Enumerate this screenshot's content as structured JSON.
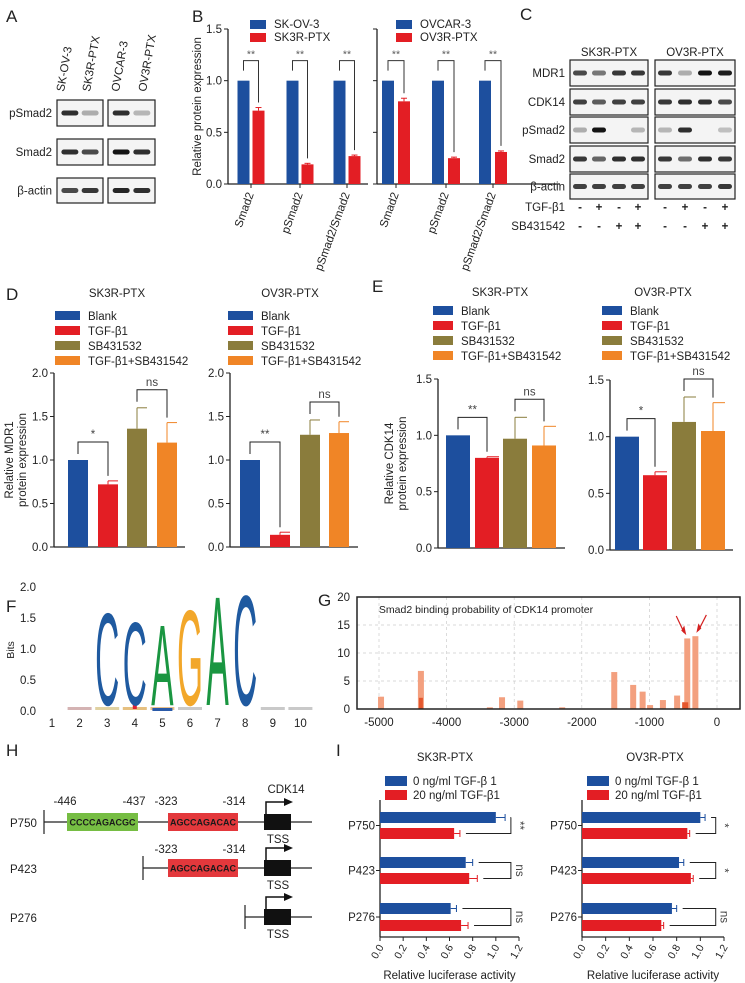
{
  "panel_labels": [
    "A",
    "B",
    "C",
    "D",
    "E",
    "F",
    "G",
    "H",
    "I"
  ],
  "colors": {
    "blue": "#1d4f9e",
    "red": "#e31e24",
    "olive": "#8a7c3c",
    "orange": "#f08526",
    "logo_c": "#1f5aa0",
    "logo_a": "#1a9641",
    "logo_g": "#f2a72a",
    "binding_bar": "#f3a07f",
    "binding_bar_dark": "#e4572e",
    "arrow": "#d42020",
    "site_green": "#76bd43",
    "site_red": "#e3383c"
  },
  "panel_a": {
    "columns": [
      "SK-OV-3",
      "SK3R-PTX",
      "OVCAR-3",
      "OV3R-PTX"
    ],
    "rows": [
      {
        "label": "pSmad2",
        "bands": [
          0.85,
          0.15,
          0.85,
          0.1
        ]
      },
      {
        "label": "Smad2",
        "bands": [
          0.85,
          0.7,
          1.0,
          0.85
        ]
      },
      {
        "label": "β-actin",
        "bands": [
          0.7,
          0.8,
          0.9,
          0.85
        ]
      }
    ]
  },
  "panel_c": {
    "groups": [
      "SK3R-PTX",
      "OV3R-PTX"
    ],
    "rows": [
      {
        "label": "MDR1",
        "bands": [
          0.7,
          0.45,
          0.8,
          0.8,
          0.8,
          0.15,
          1.0,
          0.95
        ]
      },
      {
        "label": "CDK14",
        "bands": [
          0.75,
          0.6,
          0.75,
          0.75,
          0.8,
          0.85,
          0.85,
          0.7
        ]
      },
      {
        "label": "pSmad2",
        "bands": [
          0.15,
          1.0,
          0.0,
          0.1,
          0.1,
          0.85,
          0.0,
          0.05
        ]
      },
      {
        "label": "Smad2",
        "bands": [
          0.8,
          0.55,
          0.85,
          0.85,
          0.8,
          0.5,
          0.85,
          0.8
        ]
      },
      {
        "label": "β-actin",
        "bands": [
          0.75,
          0.75,
          0.75,
          0.75,
          0.75,
          0.75,
          0.75,
          0.8
        ]
      }
    ],
    "treatments": [
      {
        "label": "TGF-β1",
        "signs": [
          "-",
          "+",
          "-",
          "+",
          "-",
          "+",
          "-",
          "+"
        ]
      },
      {
        "label": "SB431542",
        "signs": [
          "-",
          "-",
          "+",
          "+",
          "-",
          "-",
          "+",
          "+"
        ]
      }
    ]
  },
  "panel_h": {
    "gene": "CDK14",
    "tss_label": "TSS",
    "constructs": [
      {
        "name": "P750",
        "sites": [
          {
            "start": "-446",
            "end": "-437",
            "seq": "CCCCAGACGC",
            "color": "green"
          },
          {
            "start": "-323",
            "end": "-314",
            "seq": "AGCCAGACAC",
            "color": "red"
          }
        ]
      },
      {
        "name": "P423",
        "sites": [
          {
            "start": "-323",
            "end": "-314",
            "seq": "AGCCAGACAC",
            "color": "red"
          }
        ]
      },
      {
        "name": "P276",
        "sites": []
      }
    ]
  },
  "chart_data": [
    {
      "panel": "B",
      "type": "bar",
      "categories": [
        "Smad2",
        "pSmad2",
        "pSmad2/Smad2"
      ],
      "series": [
        {
          "name": "SK-OV-3",
          "color": "#1d4f9e",
          "values": [
            1.0,
            1.0,
            1.0
          ],
          "errors": [
            0,
            0,
            0
          ]
        },
        {
          "name": "SK3R-PTX",
          "color": "#e31e24",
          "values": [
            0.71,
            0.19,
            0.27
          ],
          "errors": [
            0.03,
            0.01,
            0.01
          ]
        }
      ],
      "ylabel": "Relative protein expression",
      "ylim": [
        0,
        1.5
      ],
      "yticks": [
        "0.0",
        "0.5",
        "1.0",
        "1.5"
      ],
      "significance": [
        "**",
        "**",
        "**"
      ],
      "legend": "top"
    },
    {
      "panel": "B",
      "type": "bar",
      "categories": [
        "Smad2",
        "pSmad2",
        "pSmad2/Smad2"
      ],
      "series": [
        {
          "name": "OVCAR-3",
          "color": "#1d4f9e",
          "values": [
            1.0,
            1.0,
            1.0
          ],
          "errors": [
            0,
            0,
            0
          ]
        },
        {
          "name": "OV3R-PTX",
          "color": "#e31e24",
          "values": [
            0.8,
            0.25,
            0.31
          ],
          "errors": [
            0.03,
            0.01,
            0.01
          ]
        }
      ],
      "ylim": [
        0,
        1.5
      ],
      "yticks": [],
      "significance": [
        "**",
        "**",
        "**"
      ],
      "legend": "top"
    },
    {
      "panel": "D",
      "type": "bar",
      "title": "SK3R-PTX",
      "categories": [
        "Blank",
        "TGF-β1",
        "SB431532",
        "TGF-β1+SB431542"
      ],
      "colors": [
        "#1d4f9e",
        "#e31e24",
        "#8a7c3c",
        "#f08526"
      ],
      "values": [
        1.0,
        0.72,
        1.36,
        1.2
      ],
      "errors": [
        0,
        0.04,
        0.24,
        0.23
      ],
      "ylabel_lines": [
        "Relative MDR1",
        "protein expression"
      ],
      "ylim": [
        0,
        2.0
      ],
      "yticks": [
        "0.0",
        "0.5",
        "1.0",
        "1.5",
        "2.0"
      ],
      "significance": [
        {
          "pair": [
            0,
            1
          ],
          "label": "*"
        },
        {
          "pair": [
            2,
            3
          ],
          "label": "ns"
        }
      ],
      "legend": "top"
    },
    {
      "panel": "D",
      "type": "bar",
      "title": "OV3R-PTX",
      "categories": [
        "Blank",
        "TGF-β1",
        "SB431532",
        "TGF-β1+SB431542"
      ],
      "colors": [
        "#1d4f9e",
        "#e31e24",
        "#8a7c3c",
        "#f08526"
      ],
      "values": [
        1.0,
        0.14,
        1.29,
        1.31
      ],
      "errors": [
        0,
        0.03,
        0.17,
        0.13
      ],
      "ylim": [
        0,
        2.0
      ],
      "yticks": [
        "0.0",
        "0.5",
        "1.0",
        "1.5",
        "2.0"
      ],
      "significance": [
        {
          "pair": [
            0,
            1
          ],
          "label": "**"
        },
        {
          "pair": [
            2,
            3
          ],
          "label": "ns"
        }
      ],
      "legend": "top"
    },
    {
      "panel": "E",
      "type": "bar",
      "title": "SK3R-PTX",
      "categories": [
        "Blank",
        "TGF-β1",
        "SB431532",
        "TGF-β1+SB431542"
      ],
      "colors": [
        "#1d4f9e",
        "#e31e24",
        "#8a7c3c",
        "#f08526"
      ],
      "values": [
        1.0,
        0.8,
        0.97,
        0.91
      ],
      "errors": [
        0,
        0.01,
        0.19,
        0.17
      ],
      "ylabel_lines": [
        "Relative CDK14",
        "protein  expression"
      ],
      "ylim": [
        0,
        1.5
      ],
      "yticks": [
        "0.0",
        "0.5",
        "1.0",
        "1.5"
      ],
      "significance": [
        {
          "pair": [
            0,
            1
          ],
          "label": "**"
        },
        {
          "pair": [
            2,
            3
          ],
          "label": "ns"
        }
      ],
      "legend": "top"
    },
    {
      "panel": "E",
      "type": "bar",
      "title": "OV3R-PTX",
      "categories": [
        "Blank",
        "TGF-β1",
        "SB431532",
        "TGF-β1+SB431542"
      ],
      "colors": [
        "#1d4f9e",
        "#e31e24",
        "#8a7c3c",
        "#f08526"
      ],
      "values": [
        1.0,
        0.66,
        1.13,
        1.05
      ],
      "errors": [
        0,
        0.03,
        0.22,
        0.25
      ],
      "ylim": [
        0,
        1.5
      ],
      "yticks": [
        "0.0",
        "0.5",
        "1.0",
        "1.5"
      ],
      "significance": [
        {
          "pair": [
            0,
            1
          ],
          "label": "*"
        },
        {
          "pair": [
            2,
            3
          ],
          "label": "ns"
        }
      ],
      "legend": "top"
    },
    {
      "panel": "F",
      "type": "sequence-logo",
      "ylabel": "Bits",
      "ylim": [
        0,
        2.0
      ],
      "yticks": [
        "0.0",
        "0.5",
        "1.0",
        "1.5",
        "2.0"
      ],
      "xticks": [
        "1",
        "2",
        "3",
        "4",
        "5",
        "6",
        "7",
        "8",
        "9",
        "10"
      ],
      "letters": [
        {
          "pos": 3,
          "letter": "C",
          "bits": 1.65,
          "color": "#1f5aa0"
        },
        {
          "pos": 4,
          "letter": "C",
          "bits": 1.5,
          "color": "#1f5aa0"
        },
        {
          "pos": 5,
          "letter": "A",
          "bits": 1.45,
          "color": "#1a9641"
        },
        {
          "pos": 6,
          "letter": "G",
          "bits": 1.7,
          "color": "#f2a72a"
        },
        {
          "pos": 7,
          "letter": "A",
          "bits": 1.93,
          "color": "#1a9641"
        },
        {
          "pos": 8,
          "letter": "C",
          "bits": 1.95,
          "color": "#1f5aa0"
        }
      ]
    },
    {
      "panel": "G",
      "type": "bar",
      "title": "Smad2 binding probability of CDK14 promoter",
      "x": [
        -4970,
        -4380,
        -3360,
        -3180,
        -2910,
        -2290,
        -1520,
        -1240,
        -1100,
        -990,
        -800,
        -590,
        -470,
        -440,
        -320
      ],
      "values": [
        2.2,
        6.8,
        0.3,
        2.1,
        1.5,
        0.3,
        6.6,
        4.3,
        3.1,
        0.7,
        1.6,
        2.4,
        1.2,
        12.6,
        13.0
      ],
      "xlim": [
        -5200,
        300
      ],
      "ylim": [
        0,
        20
      ],
      "xticks": [
        "-5000",
        "-4000",
        "-3000",
        "-2000",
        "-1000",
        "0"
      ],
      "yticks": [
        "0",
        "5",
        "10",
        "15",
        "20"
      ],
      "grid": true,
      "highlighted_x": [
        -440,
        -320
      ]
    },
    {
      "panel": "I",
      "type": "bar",
      "orientation": "horizontal",
      "title": "SK3R-PTX",
      "categories": [
        "P750",
        "P423",
        "P276"
      ],
      "series": [
        {
          "name": "0 ng/ml TGF-β 1",
          "color": "#1d4f9e",
          "values": [
            1.0,
            0.74,
            0.61
          ],
          "errors": [
            0.08,
            0.06,
            0.05
          ]
        },
        {
          "name": "20 ng/ml TGF-β1",
          "color": "#e31e24",
          "values": [
            0.64,
            0.77,
            0.7
          ],
          "errors": [
            0.05,
            0.07,
            0.06
          ]
        }
      ],
      "xlabel": "Relative luciferase activity",
      "xlim": [
        0,
        1.2
      ],
      "xticks": [
        "0.0",
        "0.2",
        "0.4",
        "0.6",
        "0.8",
        "1.0",
        "1.2"
      ],
      "significance": [
        "**",
        "ns",
        "ns"
      ],
      "legend": "top"
    },
    {
      "panel": "I",
      "type": "bar",
      "orientation": "horizontal",
      "title": "OV3R-PTX",
      "categories": [
        "P750",
        "P423",
        "P276"
      ],
      "series": [
        {
          "name": "0 ng/ml TGF-β 1",
          "color": "#1d4f9e",
          "values": [
            1.0,
            0.82,
            0.76
          ],
          "errors": [
            0.04,
            0.04,
            0.04
          ]
        },
        {
          "name": "20 ng/ml TGF-β1",
          "color": "#e31e24",
          "values": [
            0.89,
            0.92,
            0.67
          ],
          "errors": [
            0.02,
            0.02,
            0.02
          ]
        }
      ],
      "xlabel": "Relative luciferase activity",
      "xlim": [
        0,
        1.2
      ],
      "xticks": [
        "0.0",
        "0.2",
        "0.4",
        "0.6",
        "0.8",
        "1.0",
        "1.2"
      ],
      "significance": [
        "*",
        "*",
        "ns"
      ],
      "legend": "top"
    }
  ]
}
